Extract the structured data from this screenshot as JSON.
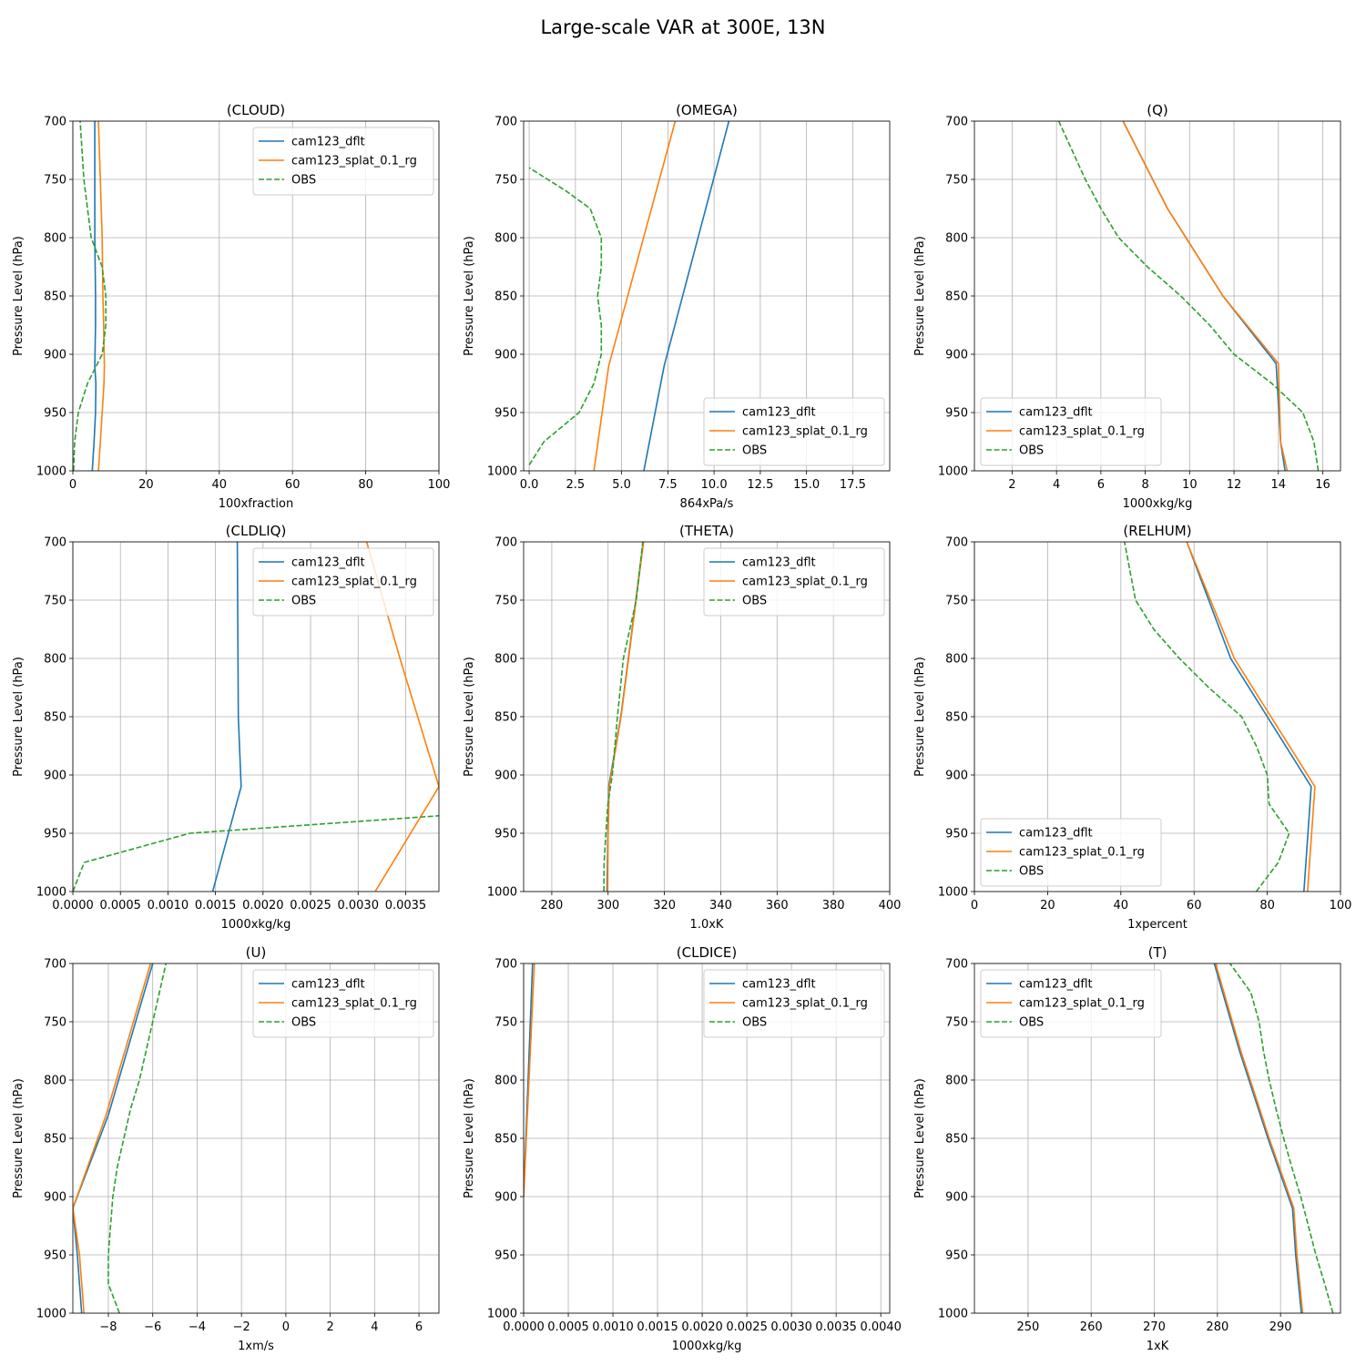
{
  "figure": {
    "suptitle": "Large-scale VAR at 300E, 13N",
    "legend_labels": [
      "cam123_dflt",
      "cam123_splat_0.1_rg",
      "OBS"
    ],
    "series_colors": [
      "#1f77b4",
      "#ff7f0e",
      "#2ca02c"
    ]
  },
  "chart_data": [
    {
      "type": "line",
      "title": "(CLOUD)",
      "xlabel": "100xfraction",
      "ylabel": "Pressure Level (hPa)",
      "xlim": [
        0,
        100
      ],
      "ylim": [
        1000,
        700
      ],
      "xticks": [
        0,
        20,
        40,
        60,
        80,
        100
      ],
      "xtick_labels": [
        "0",
        "20",
        "40",
        "60",
        "80",
        "100"
      ],
      "yticks": [
        700,
        750,
        800,
        850,
        900,
        950,
        1000
      ],
      "ytick_labels": [
        "700",
        "750",
        "800",
        "850",
        "900",
        "950",
        "1000"
      ],
      "grid": true,
      "legend": "upper right",
      "series": [
        {
          "name": "cam123_dflt",
          "x": [
            5.3,
            5.8,
            6.2,
            6.3,
            6.0,
            6.2,
            6.2,
            6.0,
            6.0
          ],
          "y": [
            1000,
            975,
            950,
            925,
            910,
            875,
            850,
            800,
            700
          ]
        },
        {
          "name": "cam123_splat_0.1_rg",
          "x": [
            7.0,
            7.5,
            8.0,
            8.5,
            8.6,
            8.4,
            8.2,
            8.0,
            7.0
          ],
          "y": [
            1000,
            975,
            950,
            925,
            910,
            875,
            850,
            800,
            700
          ]
        },
        {
          "name": "OBS",
          "x": [
            0.2,
            0.5,
            1.5,
            4.0,
            8.0,
            9.0,
            9.0,
            8.0,
            5.0,
            3.0,
            2.0
          ],
          "y": [
            1000,
            975,
            950,
            925,
            900,
            875,
            850,
            825,
            800,
            750,
            700
          ]
        }
      ]
    },
    {
      "type": "line",
      "title": "(OMEGA)",
      "xlabel": "864xPa/s",
      "ylabel": "Pressure Level (hPa)",
      "xlim": [
        -0.3,
        19.5
      ],
      "ylim": [
        1000,
        700
      ],
      "xticks": [
        0,
        2.5,
        5,
        7.5,
        10,
        12.5,
        15,
        17.5
      ],
      "xtick_labels": [
        "0.0",
        "2.5",
        "5.0",
        "7.5",
        "10.0",
        "12.5",
        "15.0",
        "17.5"
      ],
      "yticks": [
        700,
        750,
        800,
        850,
        900,
        950,
        1000
      ],
      "ytick_labels": [
        "700",
        "750",
        "800",
        "850",
        "900",
        "950",
        "1000"
      ],
      "grid": true,
      "legend": "lower right",
      "series": [
        {
          "name": "cam123_dflt",
          "x": [
            6.2,
            7.3,
            10.8
          ],
          "y": [
            1000,
            910,
            700
          ]
        },
        {
          "name": "cam123_splat_0.1_rg",
          "x": [
            3.5,
            4.3,
            7.9
          ],
          "y": [
            1000,
            910,
            700
          ]
        },
        {
          "name": "OBS",
          "x": [
            0.0,
            0.8,
            2.7,
            3.5,
            3.9,
            3.9,
            3.7,
            3.9,
            3.9,
            3.3,
            2.0,
            0.0
          ],
          "y": [
            995,
            975,
            950,
            925,
            900,
            875,
            850,
            825,
            800,
            775,
            760,
            740
          ]
        }
      ]
    },
    {
      "type": "line",
      "title": "(Q)",
      "xlabel": "1000xkg/kg",
      "ylabel": "Pressure Level (hPa)",
      "xlim": [
        0.3,
        16.8
      ],
      "ylim": [
        1000,
        700
      ],
      "xticks": [
        2,
        4,
        6,
        8,
        10,
        12,
        14,
        16
      ],
      "xtick_labels": [
        "2",
        "4",
        "6",
        "8",
        "10",
        "12",
        "14",
        "16"
      ],
      "yticks": [
        700,
        750,
        800,
        850,
        900,
        950,
        1000
      ],
      "ytick_labels": [
        "700",
        "750",
        "800",
        "850",
        "900",
        "950",
        "1000"
      ],
      "grid": true,
      "legend": "lower left",
      "series": [
        {
          "name": "cam123_dflt",
          "x": [
            14.3,
            14.1,
            13.9,
            11.5,
            9.0,
            7.0
          ],
          "y": [
            1000,
            975,
            908,
            850,
            775,
            700
          ]
        },
        {
          "name": "cam123_splat_0.1_rg",
          "x": [
            14.4,
            14.1,
            14.0,
            11.5,
            9.0,
            7.0
          ],
          "y": [
            1000,
            975,
            908,
            850,
            775,
            700
          ]
        },
        {
          "name": "OBS",
          "x": [
            15.8,
            15.6,
            15.1,
            13.7,
            12.0,
            10.9,
            9.6,
            8.1,
            6.8,
            6.0,
            5.3,
            4.1
          ],
          "y": [
            1000,
            975,
            950,
            925,
            900,
            875,
            850,
            825,
            800,
            775,
            750,
            700
          ]
        }
      ]
    },
    {
      "type": "line",
      "title": "(CLDLIQ)",
      "xlabel": "1000xkg/kg",
      "ylabel": "Pressure Level (hPa)",
      "xlim": [
        0,
        0.00385
      ],
      "ylim": [
        1000,
        700
      ],
      "xticks": [
        0,
        0.0005,
        0.001,
        0.0015,
        0.002,
        0.0025,
        0.003,
        0.0035
      ],
      "xtick_labels": [
        "0.0000",
        "0.0005",
        "0.0010",
        "0.0015",
        "0.0020",
        "0.0025",
        "0.0030",
        "0.0035"
      ],
      "yticks": [
        700,
        750,
        800,
        850,
        900,
        950,
        1000
      ],
      "ytick_labels": [
        "700",
        "750",
        "800",
        "850",
        "900",
        "950",
        "1000"
      ],
      "grid": true,
      "legend": "upper right",
      "series": [
        {
          "name": "cam123_dflt",
          "x": [
            0.00147,
            0.00177,
            0.00174,
            0.00173
          ],
          "y": [
            1000,
            910,
            850,
            700
          ]
        },
        {
          "name": "cam123_splat_0.1_rg",
          "x": [
            0.00318,
            0.00385,
            0.00344,
            0.00309
          ],
          "y": [
            1000,
            910,
            800,
            700
          ]
        },
        {
          "name": "OBS",
          "x": [
            0.0,
            0.00012,
            0.00123,
            0.00385
          ],
          "y": [
            1000,
            975,
            950,
            935
          ]
        }
      ]
    },
    {
      "type": "line",
      "title": "(THETA)",
      "xlabel": "1.0xK",
      "ylabel": "Pressure Level (hPa)",
      "xlim": [
        270,
        400
      ],
      "ylim": [
        1000,
        700
      ],
      "xticks": [
        280,
        300,
        320,
        340,
        360,
        380,
        400
      ],
      "xtick_labels": [
        "280",
        "300",
        "320",
        "340",
        "360",
        "380",
        "400"
      ],
      "yticks": [
        700,
        750,
        800,
        850,
        900,
        950,
        1000
      ],
      "ytick_labels": [
        "700",
        "750",
        "800",
        "850",
        "900",
        "950",
        "1000"
      ],
      "grid": true,
      "legend": "upper right",
      "series": [
        {
          "name": "cam123_dflt",
          "x": [
            299.6,
            299.9,
            300.2,
            304.5,
            308.5,
            312.5
          ],
          "y": [
            1000,
            950,
            910,
            850,
            775,
            700
          ]
        },
        {
          "name": "cam123_splat_0.1_rg",
          "x": [
            299.8,
            300.0,
            300.4,
            304.6,
            308.6,
            312.6
          ],
          "y": [
            1000,
            950,
            910,
            850,
            775,
            700
          ]
        },
        {
          "name": "OBS",
          "x": [
            298.5,
            298.6,
            299.2,
            299.9,
            301.5,
            303.3,
            305.4,
            307.7,
            310.0,
            312.3
          ],
          "y": [
            1000,
            975,
            950,
            925,
            900,
            850,
            800,
            775,
            750,
            700
          ]
        }
      ]
    },
    {
      "type": "line",
      "title": "(RELHUM)",
      "xlabel": "1xpercent",
      "ylabel": "Pressure Level (hPa)",
      "xlim": [
        0,
        100
      ],
      "ylim": [
        1000,
        700
      ],
      "xticks": [
        0,
        20,
        40,
        60,
        80,
        100
      ],
      "xtick_labels": [
        "0",
        "20",
        "40",
        "60",
        "80",
        "100"
      ],
      "yticks": [
        700,
        750,
        800,
        850,
        900,
        950,
        1000
      ],
      "ytick_labels": [
        "700",
        "750",
        "800",
        "850",
        "900",
        "950",
        "1000"
      ],
      "grid": true,
      "legend": "lower left",
      "series": [
        {
          "name": "cam123_dflt",
          "x": [
            90.0,
            92.0,
            80.0,
            70.0,
            58.0
          ],
          "y": [
            1000,
            910,
            850,
            800,
            700
          ]
        },
        {
          "name": "cam123_splat_0.1_rg",
          "x": [
            91.0,
            93.0,
            81.0,
            71.0,
            58.0
          ],
          "y": [
            1000,
            910,
            850,
            800,
            700
          ]
        },
        {
          "name": "OBS",
          "x": [
            77.0,
            83.0,
            86.0,
            80.5,
            80.0,
            77.0,
            73.0,
            64.0,
            56.0,
            49.0,
            44.0,
            41.0
          ],
          "y": [
            1000,
            975,
            950,
            925,
            900,
            875,
            850,
            825,
            800,
            775,
            750,
            700
          ]
        }
      ]
    },
    {
      "type": "line",
      "title": "(U)",
      "xlabel": "1xm/s",
      "ylabel": "Pressure Level (hPa)",
      "xlim": [
        -9.6,
        6.9
      ],
      "ylim": [
        1000,
        700
      ],
      "xticks": [
        -8,
        -6,
        -4,
        -2,
        0,
        2,
        4,
        6
      ],
      "xtick_labels": [
        "−8",
        "−6",
        "−4",
        "−2",
        "0",
        "2",
        "4",
        "6"
      ],
      "yticks": [
        700,
        750,
        800,
        850,
        900,
        950,
        1000
      ],
      "ytick_labels": [
        "700",
        "750",
        "800",
        "850",
        "900",
        "950",
        "1000"
      ],
      "grid": true,
      "legend": "upper right",
      "series": [
        {
          "name": "cam123_dflt",
          "x": [
            -9.2,
            -9.4,
            -9.6,
            -8.0,
            -6.0
          ],
          "y": [
            1000,
            950,
            910,
            830,
            700
          ]
        },
        {
          "name": "cam123_splat_0.1_rg",
          "x": [
            -9.1,
            -9.3,
            -9.6,
            -8.1,
            -6.1
          ],
          "y": [
            1000,
            950,
            910,
            830,
            700
          ]
        },
        {
          "name": "OBS",
          "x": [
            -7.5,
            -8.0,
            -8.0,
            -7.9,
            -7.8,
            -7.6,
            -7.3,
            -7.0,
            -6.6,
            -6.0,
            -5.4
          ],
          "y": [
            1000,
            975,
            950,
            925,
            900,
            875,
            850,
            825,
            800,
            750,
            700
          ]
        }
      ]
    },
    {
      "type": "line",
      "title": "(CLDICE)",
      "xlabel": "1000xkg/kg",
      "ylabel": "Pressure Level (hPa)",
      "xlim": [
        0,
        0.0041
      ],
      "ylim": [
        1000,
        700
      ],
      "xticks": [
        0,
        0.0005,
        0.001,
        0.0015,
        0.002,
        0.0025,
        0.003,
        0.0035,
        0.004
      ],
      "xtick_labels": [
        "0.0000",
        "0.0005",
        "0.0010",
        "0.0015",
        "0.0020",
        "0.0025",
        "0.0030",
        "0.0035",
        "0.0040"
      ],
      "yticks": [
        700,
        750,
        800,
        850,
        900,
        950,
        1000
      ],
      "ytick_labels": [
        "700",
        "750",
        "800",
        "850",
        "900",
        "950",
        "1000"
      ],
      "grid": true,
      "legend": "upper right",
      "series": [
        {
          "name": "cam123_dflt",
          "x": [
            0.0,
            5e-05,
            0.0001
          ],
          "y": [
            900,
            800,
            700
          ]
        },
        {
          "name": "cam123_splat_0.1_rg",
          "x": [
            0.0,
            6e-05,
            0.00012
          ],
          "y": [
            900,
            800,
            700
          ]
        },
        {
          "name": "OBS",
          "x": [],
          "y": []
        }
      ]
    },
    {
      "type": "line",
      "title": "(T)",
      "xlabel": "1xK",
      "ylabel": "Pressure Level (hPa)",
      "xlim": [
        241.5,
        299.5
      ],
      "ylim": [
        1000,
        700
      ],
      "xticks": [
        250,
        260,
        270,
        280,
        290
      ],
      "xtick_labels": [
        "250",
        "260",
        "270",
        "280",
        "290"
      ],
      "yticks": [
        700,
        750,
        800,
        850,
        900,
        950,
        1000
      ],
      "ytick_labels": [
        "700",
        "750",
        "800",
        "850",
        "900",
        "950",
        "1000"
      ],
      "grid": true,
      "legend": "upper left",
      "series": [
        {
          "name": "cam123_dflt",
          "x": [
            293.3,
            292.4,
            291.9,
            288.0,
            283.5,
            279.5
          ],
          "y": [
            1000,
            950,
            910,
            850,
            775,
            700
          ]
        },
        {
          "name": "cam123_splat_0.1_rg",
          "x": [
            293.5,
            292.6,
            292.1,
            288.2,
            283.7,
            279.7
          ],
          "y": [
            1000,
            950,
            910,
            850,
            775,
            700
          ]
        },
        {
          "name": "OBS",
          "x": [
            298.3,
            297.0,
            295.6,
            294.4,
            293.2,
            291.8,
            290.5,
            289.3,
            288.2,
            287.3,
            286.6,
            285.3,
            282.0
          ],
          "y": [
            1000,
            975,
            950,
            925,
            900,
            875,
            850,
            825,
            800,
            775,
            750,
            725,
            700
          ]
        }
      ]
    }
  ]
}
